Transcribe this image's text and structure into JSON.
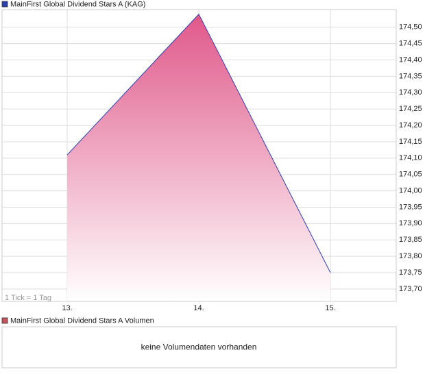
{
  "chart_data": {
    "type": "area",
    "legend": "MainFirst Global Dividend Stars A (KAG)",
    "annotation": "1 Tick = 1 Tag",
    "x": [
      13,
      14,
      15
    ],
    "series": [
      {
        "name": "MainFirst Global Dividend Stars A (KAG)",
        "color": "#2a3fb0",
        "fill": "#e0588a",
        "values": [
          174.11,
          174.54,
          173.75
        ]
      }
    ],
    "xlim": [
      12.505,
      15.5
    ],
    "xticks": [
      {
        "value": 13,
        "label": "13."
      },
      {
        "value": 14,
        "label": "14."
      },
      {
        "value": 15,
        "label": "15."
      }
    ],
    "ylim": [
      173.662,
      174.554
    ],
    "yticks": [
      {
        "value": 173.7,
        "label": "173,70"
      },
      {
        "value": 173.75,
        "label": "173,75"
      },
      {
        "value": 173.8,
        "label": "173,80"
      },
      {
        "value": 173.85,
        "label": "173,85"
      },
      {
        "value": 173.9,
        "label": "173,90"
      },
      {
        "value": 173.95,
        "label": "173,95"
      },
      {
        "value": 174.0,
        "label": "174,00"
      },
      {
        "value": 174.05,
        "label": "174,05"
      },
      {
        "value": 174.1,
        "label": "174,10"
      },
      {
        "value": 174.15,
        "label": "174,15"
      },
      {
        "value": 174.2,
        "label": "174,20"
      },
      {
        "value": 174.25,
        "label": "174,25"
      },
      {
        "value": 174.3,
        "label": "174,30"
      },
      {
        "value": 174.35,
        "label": "174,35"
      },
      {
        "value": 174.4,
        "label": "174,40"
      },
      {
        "value": 174.45,
        "label": "174,45"
      },
      {
        "value": 174.5,
        "label": "174,50"
      }
    ],
    "grid": true,
    "volume_panel": {
      "legend": "MainFirst Global Dividend Stars A Volumen",
      "color": "#c8505a",
      "message": "keine Volumendaten vorhanden"
    }
  }
}
